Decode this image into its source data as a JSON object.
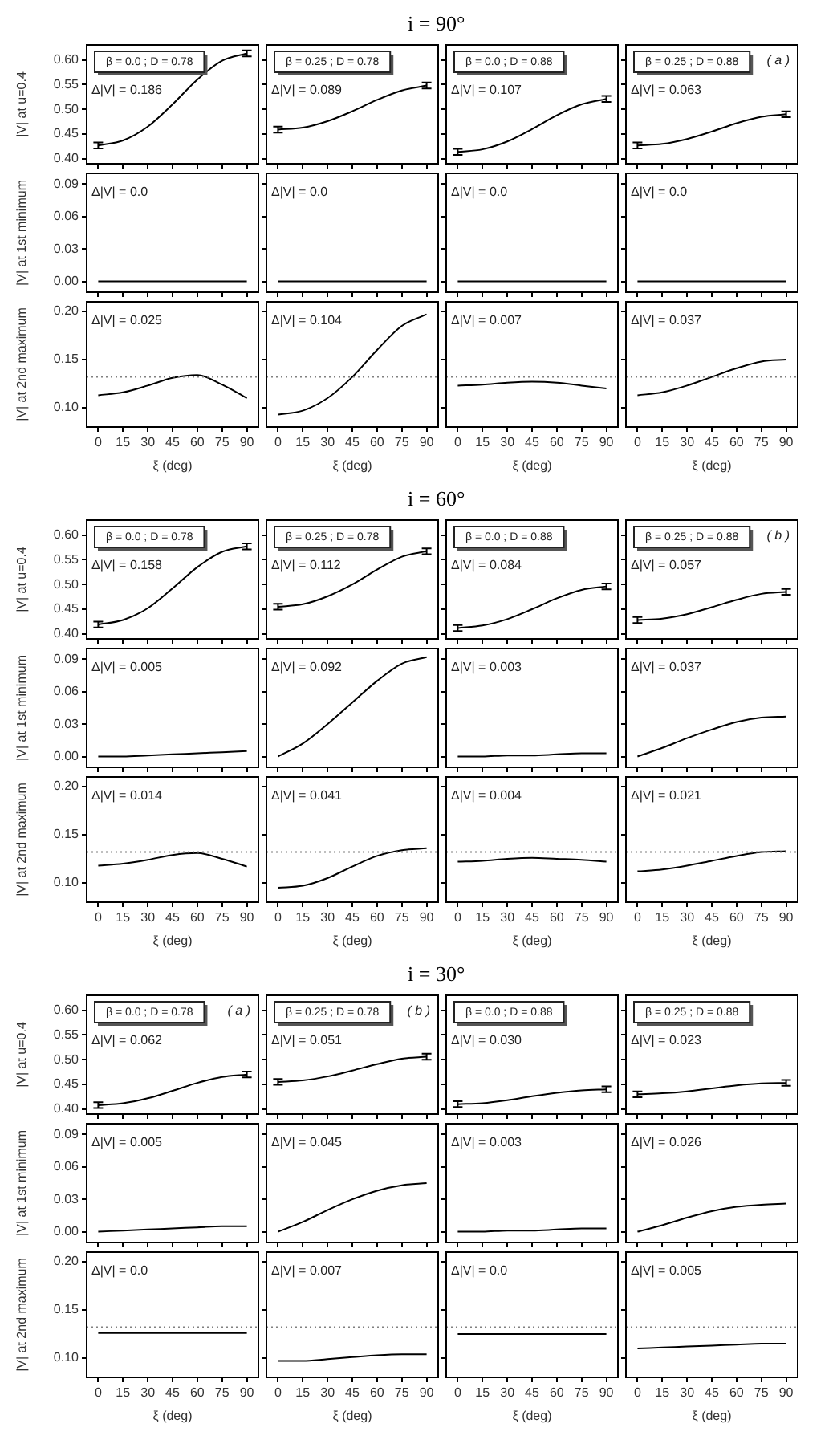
{
  "chart_data": [
    {
      "type": "line",
      "ylabel": "|V| at u=0.4",
      "x": [
        0,
        15,
        30,
        45,
        60,
        75,
        90
      ],
      "values": [
        0.427,
        0.437,
        0.465,
        0.51,
        0.56,
        0.598,
        0.613
      ],
      "errors": [
        0.006,
        null,
        null,
        null,
        null,
        null,
        0.006
      ],
      "color": "#000000",
      "xlim": [
        -7,
        97
      ],
      "xticks": [
        0,
        15,
        30,
        45,
        60,
        75,
        90
      ],
      "ylim": [
        0.39,
        0.63
      ],
      "yticks": [
        {
          "value": 0.4,
          "label": "0.40"
        },
        {
          "value": 0.45,
          "label": "0.45"
        },
        {
          "value": 0.5,
          "label": "0.50"
        },
        {
          "value": 0.55,
          "label": "0.55"
        },
        {
          "value": 0.6,
          "label": "0.60"
        }
      ],
      "annotations": [
        "β = 0.0 ; D = 0.78",
        "Δ|V| = 0.186"
      ],
      "tick_labels": "y"
    },
    {
      "type": "line",
      "x": [
        0,
        15,
        30,
        45,
        60,
        75,
        90
      ],
      "values": [
        0.459,
        0.463,
        0.476,
        0.496,
        0.519,
        0.538,
        0.548
      ],
      "errors": [
        0.006,
        null,
        null,
        null,
        null,
        null,
        0.006
      ],
      "color": "#000000",
      "xlim": [
        -7,
        97
      ],
      "xticks": [
        0,
        15,
        30,
        45,
        60,
        75,
        90
      ],
      "ylim": [
        0.39,
        0.63
      ],
      "yticks": [
        0.4,
        0.45,
        0.5,
        0.55,
        0.6
      ],
      "annotations": [
        "β = 0.25 ; D = 0.78",
        "Δ|V| = 0.089"
      ],
      "tick_labels": false
    },
    {
      "type": "line",
      "title": "i = 90°",
      "x": [
        0,
        15,
        30,
        45,
        60,
        75,
        90
      ],
      "values": [
        0.414,
        0.419,
        0.435,
        0.46,
        0.488,
        0.51,
        0.521
      ],
      "errors": [
        0.006,
        null,
        null,
        null,
        null,
        null,
        0.006
      ],
      "color": "#000000",
      "xlim": [
        -7,
        97
      ],
      "xticks": [
        0,
        15,
        30,
        45,
        60,
        75,
        90
      ],
      "ylim": [
        0.39,
        0.63
      ],
      "yticks": [
        0.4,
        0.45,
        0.5,
        0.55,
        0.6
      ],
      "annotations": [
        "β = 0.0 ; D = 0.88",
        "Δ|V| = 0.107"
      ],
      "tick_labels": false
    },
    {
      "type": "line",
      "x": [
        0,
        15,
        30,
        45,
        60,
        75,
        90
      ],
      "values": [
        0.427,
        0.43,
        0.44,
        0.455,
        0.472,
        0.485,
        0.49
      ],
      "errors": [
        0.006,
        null,
        null,
        null,
        null,
        null,
        0.006
      ],
      "color": "#000000",
      "xlim": [
        -7,
        97
      ],
      "xticks": [
        0,
        15,
        30,
        45,
        60,
        75,
        90
      ],
      "ylim": [
        0.39,
        0.63
      ],
      "yticks": [
        0.4,
        0.45,
        0.5,
        0.55,
        0.6
      ],
      "annotations": [
        "β = 0.25 ; D = 0.88",
        "Δ|V| = 0.063",
        "( a )"
      ],
      "tick_labels": false
    },
    {
      "type": "line",
      "ylabel": "|V| at 1st minimum",
      "x": [
        0,
        15,
        30,
        45,
        60,
        75,
        90
      ],
      "values": [
        0,
        0,
        0,
        0,
        0,
        0,
        0
      ],
      "color": "#000000",
      "xlim": [
        -7,
        97
      ],
      "xticks": [
        0,
        15,
        30,
        45,
        60,
        75,
        90
      ],
      "ylim": [
        -0.01,
        0.1
      ],
      "yticks": [
        {
          "value": 0,
          "label": "0.00"
        },
        {
          "value": 0.03,
          "label": "0.03"
        },
        {
          "value": 0.06,
          "label": "0.06"
        },
        {
          "value": 0.09,
          "label": "0.09"
        }
      ],
      "annotations": [
        "Δ|V| = 0.0"
      ],
      "tick_labels": "y"
    },
    {
      "type": "line",
      "x": [
        0,
        15,
        30,
        45,
        60,
        75,
        90
      ],
      "values": [
        0,
        0,
        0,
        0,
        0,
        0,
        0
      ],
      "color": "#000000",
      "xlim": [
        -7,
        97
      ],
      "xticks": [
        0,
        15,
        30,
        45,
        60,
        75,
        90
      ],
      "ylim": [
        -0.01,
        0.1
      ],
      "yticks": [
        0,
        0.03,
        0.06,
        0.09
      ],
      "annotations": [
        "Δ|V| = 0.0"
      ],
      "tick_labels": false
    },
    {
      "type": "line",
      "x": [
        0,
        15,
        30,
        45,
        60,
        75,
        90
      ],
      "values": [
        0,
        0,
        0,
        0,
        0,
        0,
        0
      ],
      "color": "#000000",
      "xlim": [
        -7,
        97
      ],
      "xticks": [
        0,
        15,
        30,
        45,
        60,
        75,
        90
      ],
      "ylim": [
        -0.01,
        0.1
      ],
      "yticks": [
        0,
        0.03,
        0.06,
        0.09
      ],
      "annotations": [
        "Δ|V| = 0.0"
      ],
      "tick_labels": false
    },
    {
      "type": "line",
      "x": [
        0,
        15,
        30,
        45,
        60,
        75,
        90
      ],
      "values": [
        0,
        0,
        0,
        0,
        0,
        0,
        0
      ],
      "color": "#000000",
      "xlim": [
        -7,
        97
      ],
      "xticks": [
        0,
        15,
        30,
        45,
        60,
        75,
        90
      ],
      "ylim": [
        -0.01,
        0.1
      ],
      "yticks": [
        0,
        0.03,
        0.06,
        0.09
      ],
      "annotations": [
        "Δ|V| = 0.0"
      ],
      "tick_labels": false
    },
    {
      "type": "line",
      "ylabel": "|V| at 2nd maximum",
      "xlabel": "ξ (deg)",
      "x": [
        0,
        15,
        30,
        45,
        60,
        75,
        90
      ],
      "values": [
        0.113,
        0.116,
        0.123,
        0.131,
        0.134,
        0.124,
        0.11
      ],
      "color": "#000000",
      "xlim": [
        -7,
        97
      ],
      "xticks": [
        0,
        15,
        30,
        45,
        60,
        75,
        90
      ],
      "ylim": [
        0.08,
        0.21
      ],
      "yticks": [
        {
          "value": 0.1,
          "label": "0.10"
        },
        {
          "value": 0.15,
          "label": "0.15"
        },
        {
          "value": 0.2,
          "label": "0.20"
        }
      ],
      "ref_lines": [
        {
          "axis": "y",
          "value": 0.132,
          "color": "#808080",
          "line_style": "dotted"
        }
      ],
      "annotations": [
        "Δ|V| = 0.025"
      ]
    },
    {
      "type": "line",
      "xlabel": "ξ (deg)",
      "x": [
        0,
        15,
        30,
        45,
        60,
        75,
        90
      ],
      "values": [
        0.093,
        0.097,
        0.11,
        0.132,
        0.16,
        0.185,
        0.197
      ],
      "color": "#000000",
      "xlim": [
        -7,
        97
      ],
      "xticks": [
        0,
        15,
        30,
        45,
        60,
        75,
        90
      ],
      "ylim": [
        0.08,
        0.21
      ],
      "yticks": [
        0.1,
        0.15,
        0.2
      ],
      "ref_lines": [
        {
          "axis": "y",
          "value": 0.132,
          "color": "#808080",
          "line_style": "dotted"
        }
      ],
      "annotations": [
        "Δ|V| = 0.104"
      ],
      "tick_labels": "x"
    },
    {
      "type": "line",
      "xlabel": "ξ (deg)",
      "x": [
        0,
        15,
        30,
        45,
        60,
        75,
        90
      ],
      "values": [
        0.123,
        0.124,
        0.126,
        0.127,
        0.126,
        0.123,
        0.12
      ],
      "color": "#000000",
      "xlim": [
        -7,
        97
      ],
      "xticks": [
        0,
        15,
        30,
        45,
        60,
        75,
        90
      ],
      "ylim": [
        0.08,
        0.21
      ],
      "yticks": [
        0.1,
        0.15,
        0.2
      ],
      "ref_lines": [
        {
          "axis": "y",
          "value": 0.132,
          "color": "#808080",
          "line_style": "dotted"
        }
      ],
      "annotations": [
        "Δ|V| = 0.007"
      ],
      "tick_labels": "x"
    },
    {
      "type": "line",
      "xlabel": "ξ (deg)",
      "x": [
        0,
        15,
        30,
        45,
        60,
        75,
        90
      ],
      "values": [
        0.113,
        0.116,
        0.123,
        0.132,
        0.141,
        0.148,
        0.15
      ],
      "color": "#000000",
      "xlim": [
        -7,
        97
      ],
      "xticks": [
        0,
        15,
        30,
        45,
        60,
        75,
        90
      ],
      "ylim": [
        0.08,
        0.21
      ],
      "yticks": [
        0.1,
        0.15,
        0.2
      ],
      "ref_lines": [
        {
          "axis": "y",
          "value": 0.132,
          "color": "#808080",
          "line_style": "dotted"
        }
      ],
      "annotations": [
        "Δ|V| = 0.037"
      ],
      "tick_labels": "x"
    },
    {
      "type": "line",
      "ylabel": "|V| at u=0.4",
      "x": [
        0,
        15,
        30,
        45,
        60,
        75,
        90
      ],
      "values": [
        0.419,
        0.428,
        0.452,
        0.492,
        0.535,
        0.566,
        0.577
      ],
      "errors": [
        0.006,
        null,
        null,
        null,
        null,
        null,
        0.006
      ],
      "color": "#000000",
      "xlim": [
        -7,
        97
      ],
      "xticks": [
        0,
        15,
        30,
        45,
        60,
        75,
        90
      ],
      "ylim": [
        0.39,
        0.63
      ],
      "yticks": [
        {
          "value": 0.4,
          "label": "0.40"
        },
        {
          "value": 0.45,
          "label": "0.45"
        },
        {
          "value": 0.5,
          "label": "0.50"
        },
        {
          "value": 0.55,
          "label": "0.55"
        },
        {
          "value": 0.6,
          "label": "0.60"
        }
      ],
      "annotations": [
        "β = 0.0 ; D = 0.78",
        "Δ|V| = 0.158"
      ],
      "tick_labels": "y"
    },
    {
      "type": "line",
      "x": [
        0,
        15,
        30,
        45,
        60,
        75,
        90
      ],
      "values": [
        0.455,
        0.46,
        0.476,
        0.5,
        0.53,
        0.556,
        0.567
      ],
      "errors": [
        0.006,
        null,
        null,
        null,
        null,
        null,
        0.006
      ],
      "color": "#000000",
      "xlim": [
        -7,
        97
      ],
      "xticks": [
        0,
        15,
        30,
        45,
        60,
        75,
        90
      ],
      "ylim": [
        0.39,
        0.63
      ],
      "yticks": [
        0.4,
        0.45,
        0.5,
        0.55,
        0.6
      ],
      "annotations": [
        "β = 0.25 ; D = 0.78",
        "Δ|V| = 0.112"
      ],
      "tick_labels": false
    },
    {
      "type": "line",
      "title": "i = 60°",
      "x": [
        0,
        15,
        30,
        45,
        60,
        75,
        90
      ],
      "values": [
        0.412,
        0.417,
        0.43,
        0.45,
        0.472,
        0.489,
        0.496
      ],
      "errors": [
        0.006,
        null,
        null,
        null,
        null,
        null,
        0.006
      ],
      "color": "#000000",
      "xlim": [
        -7,
        97
      ],
      "xticks": [
        0,
        15,
        30,
        45,
        60,
        75,
        90
      ],
      "ylim": [
        0.39,
        0.63
      ],
      "yticks": [
        0.4,
        0.45,
        0.5,
        0.55,
        0.6
      ],
      "annotations": [
        "β = 0.0 ; D = 0.88",
        "Δ|V| = 0.084"
      ],
      "tick_labels": false
    },
    {
      "type": "line",
      "x": [
        0,
        15,
        30,
        45,
        60,
        75,
        90
      ],
      "values": [
        0.428,
        0.431,
        0.44,
        0.454,
        0.469,
        0.481,
        0.485
      ],
      "errors": [
        0.006,
        null,
        null,
        null,
        null,
        null,
        0.006
      ],
      "color": "#000000",
      "xlim": [
        -7,
        97
      ],
      "xticks": [
        0,
        15,
        30,
        45,
        60,
        75,
        90
      ],
      "ylim": [
        0.39,
        0.63
      ],
      "yticks": [
        0.4,
        0.45,
        0.5,
        0.55,
        0.6
      ],
      "annotations": [
        "β = 0.25 ; D = 0.88",
        "Δ|V| = 0.057",
        "( b )"
      ],
      "tick_labels": false
    },
    {
      "type": "line",
      "ylabel": "|V| at 1st minimum",
      "x": [
        0,
        15,
        30,
        45,
        60,
        75,
        90
      ],
      "values": [
        0,
        0,
        0.001,
        0.002,
        0.003,
        0.004,
        0.005
      ],
      "color": "#000000",
      "xlim": [
        -7,
        97
      ],
      "xticks": [
        0,
        15,
        30,
        45,
        60,
        75,
        90
      ],
      "ylim": [
        -0.01,
        0.1
      ],
      "yticks": [
        {
          "value": 0,
          "label": "0.00"
        },
        {
          "value": 0.03,
          "label": "0.03"
        },
        {
          "value": 0.06,
          "label": "0.06"
        },
        {
          "value": 0.09,
          "label": "0.09"
        }
      ],
      "annotations": [
        "Δ|V| = 0.005"
      ],
      "tick_labels": "y"
    },
    {
      "type": "line",
      "x": [
        0,
        15,
        30,
        45,
        60,
        75,
        90
      ],
      "values": [
        0,
        0.012,
        0.03,
        0.05,
        0.07,
        0.086,
        0.092
      ],
      "color": "#000000",
      "xlim": [
        -7,
        97
      ],
      "xticks": [
        0,
        15,
        30,
        45,
        60,
        75,
        90
      ],
      "ylim": [
        -0.01,
        0.1
      ],
      "yticks": [
        0,
        0.03,
        0.06,
        0.09
      ],
      "annotations": [
        "Δ|V| = 0.092"
      ],
      "tick_labels": false
    },
    {
      "type": "line",
      "x": [
        0,
        15,
        30,
        45,
        60,
        75,
        90
      ],
      "values": [
        0,
        0,
        0.001,
        0.001,
        0.002,
        0.003,
        0.003
      ],
      "color": "#000000",
      "xlim": [
        -7,
        97
      ],
      "xticks": [
        0,
        15,
        30,
        45,
        60,
        75,
        90
      ],
      "ylim": [
        -0.01,
        0.1
      ],
      "yticks": [
        0,
        0.03,
        0.06,
        0.09
      ],
      "annotations": [
        "Δ|V| = 0.003"
      ],
      "tick_labels": false
    },
    {
      "type": "line",
      "x": [
        0,
        15,
        30,
        45,
        60,
        75,
        90
      ],
      "values": [
        0,
        0.008,
        0.017,
        0.025,
        0.032,
        0.036,
        0.037
      ],
      "color": "#000000",
      "xlim": [
        -7,
        97
      ],
      "xticks": [
        0,
        15,
        30,
        45,
        60,
        75,
        90
      ],
      "ylim": [
        -0.01,
        0.1
      ],
      "yticks": [
        0,
        0.03,
        0.06,
        0.09
      ],
      "annotations": [
        "Δ|V| = 0.037"
      ],
      "tick_labels": false
    },
    {
      "type": "line",
      "ylabel": "|V| at 2nd maximum",
      "xlabel": "ξ (deg)",
      "x": [
        0,
        15,
        30,
        45,
        60,
        75,
        90
      ],
      "values": [
        0.118,
        0.12,
        0.124,
        0.129,
        0.131,
        0.125,
        0.117
      ],
      "color": "#000000",
      "xlim": [
        -7,
        97
      ],
      "xticks": [
        0,
        15,
        30,
        45,
        60,
        75,
        90
      ],
      "ylim": [
        0.08,
        0.21
      ],
      "yticks": [
        {
          "value": 0.1,
          "label": "0.10"
        },
        {
          "value": 0.15,
          "label": "0.15"
        },
        {
          "value": 0.2,
          "label": "0.20"
        }
      ],
      "ref_lines": [
        {
          "axis": "y",
          "value": 0.132,
          "color": "#808080",
          "line_style": "dotted"
        }
      ],
      "annotations": [
        "Δ|V| = 0.014"
      ]
    },
    {
      "type": "line",
      "xlabel": "ξ (deg)",
      "x": [
        0,
        15,
        30,
        45,
        60,
        75,
        90
      ],
      "values": [
        0.095,
        0.097,
        0.105,
        0.117,
        0.128,
        0.134,
        0.136
      ],
      "color": "#000000",
      "xlim": [
        -7,
        97
      ],
      "xticks": [
        0,
        15,
        30,
        45,
        60,
        75,
        90
      ],
      "ylim": [
        0.08,
        0.21
      ],
      "yticks": [
        0.1,
        0.15,
        0.2
      ],
      "ref_lines": [
        {
          "axis": "y",
          "value": 0.132,
          "color": "#808080",
          "line_style": "dotted"
        }
      ],
      "annotations": [
        "Δ|V| = 0.041"
      ],
      "tick_labels": "x"
    },
    {
      "type": "line",
      "xlabel": "ξ (deg)",
      "x": [
        0,
        15,
        30,
        45,
        60,
        75,
        90
      ],
      "values": [
        0.122,
        0.123,
        0.125,
        0.126,
        0.125,
        0.124,
        0.122
      ],
      "color": "#000000",
      "xlim": [
        -7,
        97
      ],
      "xticks": [
        0,
        15,
        30,
        45,
        60,
        75,
        90
      ],
      "ylim": [
        0.08,
        0.21
      ],
      "yticks": [
        0.1,
        0.15,
        0.2
      ],
      "ref_lines": [
        {
          "axis": "y",
          "value": 0.132,
          "color": "#808080",
          "line_style": "dotted"
        }
      ],
      "annotations": [
        "Δ|V| = 0.004"
      ],
      "tick_labels": "x"
    },
    {
      "type": "line",
      "xlabel": "ξ (deg)",
      "x": [
        0,
        15,
        30,
        45,
        60,
        75,
        90
      ],
      "values": [
        0.112,
        0.114,
        0.118,
        0.123,
        0.128,
        0.132,
        0.133
      ],
      "color": "#000000",
      "xlim": [
        -7,
        97
      ],
      "xticks": [
        0,
        15,
        30,
        45,
        60,
        75,
        90
      ],
      "ylim": [
        0.08,
        0.21
      ],
      "yticks": [
        0.1,
        0.15,
        0.2
      ],
      "ref_lines": [
        {
          "axis": "y",
          "value": 0.132,
          "color": "#808080",
          "line_style": "dotted"
        }
      ],
      "annotations": [
        "Δ|V| = 0.021"
      ],
      "tick_labels": "x"
    },
    {
      "type": "line",
      "ylabel": "|V| at u=0.4",
      "x": [
        0,
        15,
        30,
        45,
        60,
        75,
        90
      ],
      "values": [
        0.408,
        0.412,
        0.422,
        0.437,
        0.453,
        0.465,
        0.47
      ],
      "errors": [
        0.006,
        null,
        null,
        null,
        null,
        null,
        0.006
      ],
      "color": "#000000",
      "xlim": [
        -7,
        97
      ],
      "xticks": [
        0,
        15,
        30,
        45,
        60,
        75,
        90
      ],
      "ylim": [
        0.39,
        0.63
      ],
      "yticks": [
        {
          "value": 0.4,
          "label": "0.40"
        },
        {
          "value": 0.45,
          "label": "0.45"
        },
        {
          "value": 0.5,
          "label": "0.50"
        },
        {
          "value": 0.55,
          "label": "0.55"
        },
        {
          "value": 0.6,
          "label": "0.60"
        }
      ],
      "annotations": [
        "β = 0.0 ; D = 0.78",
        "Δ|V| = 0.062",
        "( a )"
      ],
      "tick_labels": "y"
    },
    {
      "type": "line",
      "x": [
        0,
        15,
        30,
        45,
        60,
        75,
        90
      ],
      "values": [
        0.455,
        0.458,
        0.466,
        0.478,
        0.491,
        0.502,
        0.506
      ],
      "errors": [
        0.006,
        null,
        null,
        null,
        null,
        null,
        0.006
      ],
      "color": "#000000",
      "xlim": [
        -7,
        97
      ],
      "xticks": [
        0,
        15,
        30,
        45,
        60,
        75,
        90
      ],
      "ylim": [
        0.39,
        0.63
      ],
      "yticks": [
        0.4,
        0.45,
        0.5,
        0.55,
        0.6
      ],
      "annotations": [
        "β = 0.25 ; D = 0.78",
        "Δ|V| = 0.051",
        "( b )"
      ],
      "tick_labels": false
    },
    {
      "type": "line",
      "title": "i = 30°",
      "x": [
        0,
        15,
        30,
        45,
        60,
        75,
        90
      ],
      "values": [
        0.41,
        0.412,
        0.418,
        0.426,
        0.433,
        0.438,
        0.44
      ],
      "errors": [
        0.006,
        null,
        null,
        null,
        null,
        null,
        0.006
      ],
      "color": "#000000",
      "xlim": [
        -7,
        97
      ],
      "xticks": [
        0,
        15,
        30,
        45,
        60,
        75,
        90
      ],
      "ylim": [
        0.39,
        0.63
      ],
      "yticks": [
        0.4,
        0.45,
        0.5,
        0.55,
        0.6
      ],
      "annotations": [
        "β = 0.0 ; D = 0.88",
        "Δ|V| = 0.030"
      ],
      "tick_labels": false
    },
    {
      "type": "line",
      "x": [
        0,
        15,
        30,
        45,
        60,
        75,
        90
      ],
      "values": [
        0.43,
        0.432,
        0.436,
        0.442,
        0.448,
        0.452,
        0.453
      ],
      "errors": [
        0.006,
        null,
        null,
        null,
        null,
        null,
        0.006
      ],
      "color": "#000000",
      "xlim": [
        -7,
        97
      ],
      "xticks": [
        0,
        15,
        30,
        45,
        60,
        75,
        90
      ],
      "ylim": [
        0.39,
        0.63
      ],
      "yticks": [
        0.4,
        0.45,
        0.5,
        0.55,
        0.6
      ],
      "annotations": [
        "β = 0.25 ; D = 0.88",
        "Δ|V| = 0.023"
      ],
      "tick_labels": false
    },
    {
      "type": "line",
      "ylabel": "|V| at 1st minimum",
      "x": [
        0,
        15,
        30,
        45,
        60,
        75,
        90
      ],
      "values": [
        0,
        0.001,
        0.002,
        0.003,
        0.004,
        0.005,
        0.005
      ],
      "color": "#000000",
      "xlim": [
        -7,
        97
      ],
      "xticks": [
        0,
        15,
        30,
        45,
        60,
        75,
        90
      ],
      "ylim": [
        -0.01,
        0.1
      ],
      "yticks": [
        {
          "value": 0,
          "label": "0.00"
        },
        {
          "value": 0.03,
          "label": "0.03"
        },
        {
          "value": 0.06,
          "label": "0.06"
        },
        {
          "value": 0.09,
          "label": "0.09"
        }
      ],
      "annotations": [
        "Δ|V| = 0.005"
      ],
      "tick_labels": "y"
    },
    {
      "type": "line",
      "x": [
        0,
        15,
        30,
        45,
        60,
        75,
        90
      ],
      "values": [
        0,
        0.009,
        0.02,
        0.03,
        0.038,
        0.043,
        0.045
      ],
      "color": "#000000",
      "xlim": [
        -7,
        97
      ],
      "xticks": [
        0,
        15,
        30,
        45,
        60,
        75,
        90
      ],
      "ylim": [
        -0.01,
        0.1
      ],
      "yticks": [
        0,
        0.03,
        0.06,
        0.09
      ],
      "annotations": [
        "Δ|V| = 0.045"
      ],
      "tick_labels": false
    },
    {
      "type": "line",
      "x": [
        0,
        15,
        30,
        45,
        60,
        75,
        90
      ],
      "values": [
        0,
        0,
        0.001,
        0.001,
        0.002,
        0.003,
        0.003
      ],
      "color": "#000000",
      "xlim": [
        -7,
        97
      ],
      "xticks": [
        0,
        15,
        30,
        45,
        60,
        75,
        90
      ],
      "ylim": [
        -0.01,
        0.1
      ],
      "yticks": [
        0,
        0.03,
        0.06,
        0.09
      ],
      "annotations": [
        "Δ|V| = 0.003"
      ],
      "tick_labels": false
    },
    {
      "type": "line",
      "x": [
        0,
        15,
        30,
        45,
        60,
        75,
        90
      ],
      "values": [
        0,
        0.006,
        0.013,
        0.019,
        0.023,
        0.025,
        0.026
      ],
      "color": "#000000",
      "xlim": [
        -7,
        97
      ],
      "xticks": [
        0,
        15,
        30,
        45,
        60,
        75,
        90
      ],
      "ylim": [
        -0.01,
        0.1
      ],
      "yticks": [
        0,
        0.03,
        0.06,
        0.09
      ],
      "annotations": [
        "Δ|V| = 0.026"
      ],
      "tick_labels": false
    },
    {
      "type": "line",
      "ylabel": "|V| at 2nd maximum",
      "xlabel": "ξ (deg)",
      "x": [
        0,
        15,
        30,
        45,
        60,
        75,
        90
      ],
      "values": [
        0.126,
        0.126,
        0.126,
        0.126,
        0.126,
        0.126,
        0.126
      ],
      "color": "#000000",
      "xlim": [
        -7,
        97
      ],
      "xticks": [
        0,
        15,
        30,
        45,
        60,
        75,
        90
      ],
      "ylim": [
        0.08,
        0.21
      ],
      "yticks": [
        {
          "value": 0.1,
          "label": "0.10"
        },
        {
          "value": 0.15,
          "label": "0.15"
        },
        {
          "value": 0.2,
          "label": "0.20"
        }
      ],
      "ref_lines": [
        {
          "axis": "y",
          "value": 0.132,
          "color": "#808080",
          "line_style": "dotted"
        }
      ],
      "annotations": [
        "Δ|V| = 0.0"
      ]
    },
    {
      "type": "line",
      "xlabel": "ξ (deg)",
      "x": [
        0,
        15,
        30,
        45,
        60,
        75,
        90
      ],
      "values": [
        0.097,
        0.097,
        0.099,
        0.101,
        0.103,
        0.104,
        0.104
      ],
      "color": "#000000",
      "xlim": [
        -7,
        97
      ],
      "xticks": [
        0,
        15,
        30,
        45,
        60,
        75,
        90
      ],
      "ylim": [
        0.08,
        0.21
      ],
      "yticks": [
        0.1,
        0.15,
        0.2
      ],
      "ref_lines": [
        {
          "axis": "y",
          "value": 0.132,
          "color": "#808080",
          "line_style": "dotted"
        }
      ],
      "annotations": [
        "Δ|V| = 0.007"
      ],
      "tick_labels": "x"
    },
    {
      "type": "line",
      "xlabel": "ξ (deg)",
      "x": [
        0,
        15,
        30,
        45,
        60,
        75,
        90
      ],
      "values": [
        0.125,
        0.125,
        0.125,
        0.125,
        0.125,
        0.125,
        0.125
      ],
      "color": "#000000",
      "xlim": [
        -7,
        97
      ],
      "xticks": [
        0,
        15,
        30,
        45,
        60,
        75,
        90
      ],
      "ylim": [
        0.08,
        0.21
      ],
      "yticks": [
        0.1,
        0.15,
        0.2
      ],
      "ref_lines": [
        {
          "axis": "y",
          "value": 0.132,
          "color": "#808080",
          "line_style": "dotted"
        }
      ],
      "annotations": [
        "Δ|V| = 0.0"
      ],
      "tick_labels": "x"
    },
    {
      "type": "line",
      "xlabel": "ξ (deg)",
      "x": [
        0,
        15,
        30,
        45,
        60,
        75,
        90
      ],
      "values": [
        0.11,
        0.111,
        0.112,
        0.113,
        0.114,
        0.115,
        0.115
      ],
      "color": "#000000",
      "xlim": [
        -7,
        97
      ],
      "xticks": [
        0,
        15,
        30,
        45,
        60,
        75,
        90
      ],
      "ylim": [
        0.08,
        0.21
      ],
      "yticks": [
        0.1,
        0.15,
        0.2
      ],
      "ref_lines": [
        {
          "axis": "y",
          "value": 0.132,
          "color": "#808080",
          "line_style": "dotted"
        }
      ],
      "annotations": [
        "Δ|V| = 0.005"
      ],
      "tick_labels": "x"
    }
  ]
}
